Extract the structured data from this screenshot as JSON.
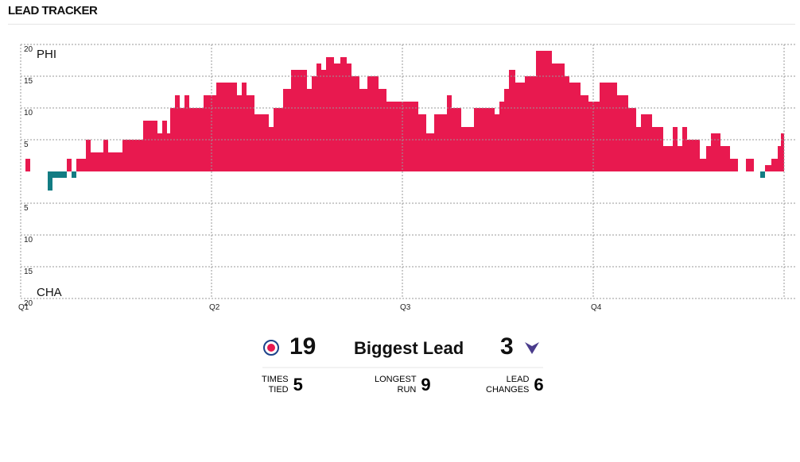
{
  "header": {
    "title": "LEAD TRACKER"
  },
  "chart_data": {
    "type": "lead-tracker",
    "positive_label": "PHI",
    "negative_label": "CHA",
    "positive_color": "#e8194f",
    "negative_color": "#127c83",
    "x": [
      0,
      0.3,
      0.6,
      1.7,
      2.0,
      2.9,
      3.2,
      3.5,
      4.1,
      4.4,
      5.2,
      5.5,
      6.4,
      7.7,
      8.6,
      8.9,
      9.2,
      9.4,
      9.7,
      10.0,
      10.3,
      10.6,
      11.5,
      12.3,
      13.6,
      13.9,
      14.2,
      14.7,
      15.6,
      15.9,
      16.5,
      17.0,
      18.0,
      18.3,
      18.6,
      18.9,
      19.2,
      19.7,
      20.1,
      20.5,
      20.8,
      21.3,
      21.8,
      22.5,
      23.0,
      25.0,
      25.5,
      26.0,
      26.8,
      27.1,
      27.7,
      28.5,
      29.8,
      30.1,
      30.4,
      30.7,
      31.1,
      31.7,
      32.4,
      33.4,
      34.2,
      34.5,
      35.2,
      35.7,
      36.4,
      37.5,
      38.2,
      38.7,
      39.0,
      39.7,
      40.4,
      41.0,
      41.3,
      41.6,
      41.9,
      42.7,
      43.1,
      43.4,
      44.0,
      44.6,
      45.1,
      45.6,
      46.1,
      46.5,
      46.8,
      47.2,
      47.6,
      47.8
    ],
    "values": [
      0,
      2,
      0,
      -3,
      -1,
      2,
      -1,
      2,
      5,
      3,
      5,
      3,
      5,
      8,
      6,
      8,
      6,
      10,
      12,
      10,
      12,
      10,
      12,
      14,
      12,
      14,
      12,
      9,
      7,
      10,
      13,
      16,
      13,
      15,
      17,
      16,
      18,
      17,
      18,
      17,
      15,
      13,
      15,
      13,
      11,
      9,
      6,
      9,
      12,
      10,
      7,
      10,
      9,
      11,
      13,
      16,
      14,
      15,
      19,
      17,
      15,
      14,
      12,
      11,
      14,
      12,
      10,
      7,
      9,
      7,
      4,
      7,
      4,
      7,
      5,
      2,
      4,
      6,
      4,
      2,
      0,
      2,
      0,
      -1,
      1,
      2,
      4,
      6
    ],
    "xlim": [
      0,
      48
    ],
    "xticks": [
      {
        "value": 0,
        "label": "Q1"
      },
      {
        "value": 12,
        "label": "Q2"
      },
      {
        "value": 24,
        "label": "Q3"
      },
      {
        "value": 36,
        "label": "Q4"
      }
    ],
    "ylim": [
      -20,
      20
    ],
    "yticks": [
      20,
      15,
      10,
      5,
      {
        "value": -5,
        "label": "5"
      },
      {
        "value": -10,
        "label": "10"
      },
      {
        "value": -15,
        "label": "15"
      },
      {
        "value": -20,
        "label": "20"
      }
    ],
    "grid": true
  },
  "summary": {
    "biggest_lead_label": "Biggest Lead",
    "phi_biggest_lead": 19,
    "cha_biggest_lead": 3,
    "times_tied_label": "TIMES TIED",
    "times_tied": 5,
    "longest_run_label": "LONGEST RUN",
    "longest_run": 9,
    "lead_changes_label": "LEAD CHANGES",
    "lead_changes": 6
  }
}
